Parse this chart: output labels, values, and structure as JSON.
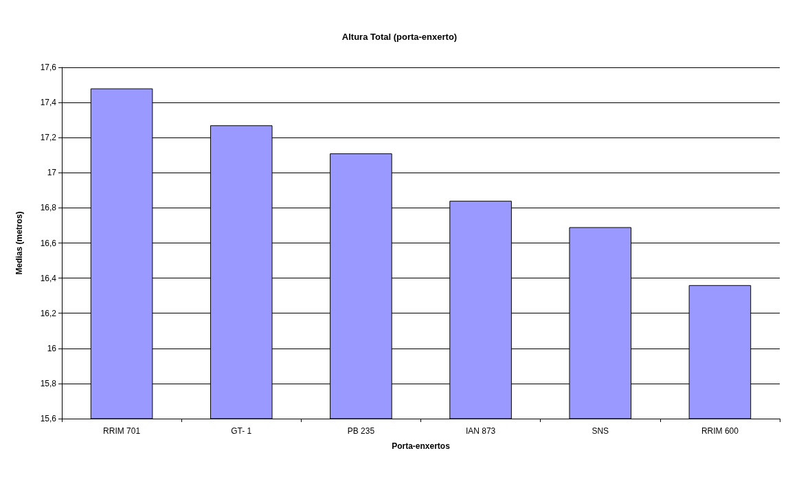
{
  "chart_data": {
    "type": "bar",
    "title": "Altura Total (porta-enxerto)",
    "xlabel": "Porta-enxertos",
    "ylabel": "Medias (metros)",
    "categories": [
      "RRIM 701",
      "GT- 1",
      "PB 235",
      "IAN 873",
      "SNS",
      "RRIM 600"
    ],
    "values": [
      17.48,
      17.27,
      17.11,
      16.84,
      16.69,
      16.36
    ],
    "color": "#9999ff",
    "ylim": [
      15.6,
      17.6
    ],
    "yticks": [
      {
        "value": 15.6,
        "label": "15,6"
      },
      {
        "value": 15.8,
        "label": "15,8"
      },
      16,
      {
        "value": 16.2,
        "label": "16,2"
      },
      {
        "value": 16.4,
        "label": "16,4"
      },
      {
        "value": 16.6,
        "label": "16,6"
      },
      {
        "value": 16.8,
        "label": "16,8"
      },
      17,
      {
        "value": 17.2,
        "label": "17,2"
      },
      {
        "value": 17.4,
        "label": "17,4"
      },
      {
        "value": 17.6,
        "label": "17,6"
      }
    ],
    "grid": "y"
  }
}
